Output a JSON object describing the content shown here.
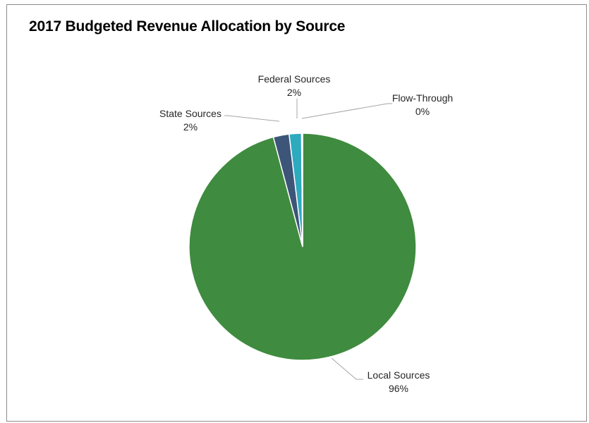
{
  "chart_data": {
    "type": "pie",
    "title": "2017 Budgeted Revenue Allocation by Source",
    "slices": [
      {
        "name": "Local Sources",
        "value": 96,
        "percent_label": "96%",
        "color": "#3f8b3f"
      },
      {
        "name": "State Sources",
        "value": 2,
        "percent_label": "2%",
        "color": "#3c5578"
      },
      {
        "name": "Federal Sources",
        "value": 2,
        "percent_label": "2%",
        "color": "#2eaabf"
      },
      {
        "name": "Flow-Through",
        "value": 0,
        "percent_label": "0%",
        "color": "#8aa6c8"
      }
    ],
    "legend": "none",
    "data_labels": "outside-with-leader-lines"
  }
}
